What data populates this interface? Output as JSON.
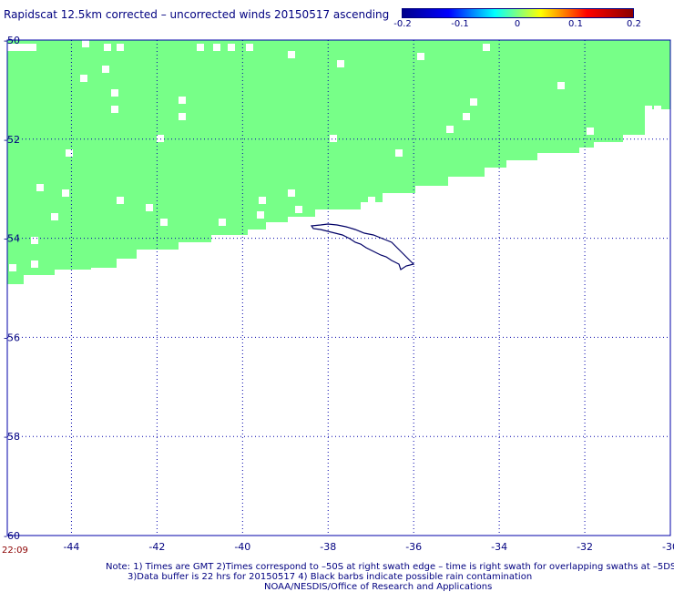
{
  "title": "Rapidscat 12.5km corrected – uncorrected winds 20150517 ascending",
  "colorbar": {
    "labels": [
      "-0.2",
      "-0.1",
      "0",
      "0.1",
      "0.2"
    ],
    "colors": [
      "#00008b",
      "#0000ff",
      "#00ffff",
      "#ffff00",
      "#ff0000",
      "#8b0000"
    ]
  },
  "map": {
    "lon_range": [
      -45.5,
      -30
    ],
    "lat_range": [
      -60,
      -50
    ],
    "lon_ticks": [
      "-44",
      "-42",
      "-40",
      "-38",
      "-36",
      "-34",
      "-32",
      "-30"
    ],
    "lat_ticks": [
      "-50",
      "-52",
      "-54",
      "-56",
      "-58",
      "-60"
    ],
    "swath_color": "#77ff88",
    "coast_color": "#000066",
    "grid_color": "#0000aa"
  },
  "time_label": "22:09",
  "notes": [
    "Note: 1) Times are GMT 2)Times correspond to –50S at right swath edge – time is right swath for overlapping swaths at –5DS",
    "3)Data buffer is 22 hrs for 20150517 4) Black barbs indicate possible rain contamination",
    "NOAA/NESDIS/Office of Research and Applications"
  ]
}
